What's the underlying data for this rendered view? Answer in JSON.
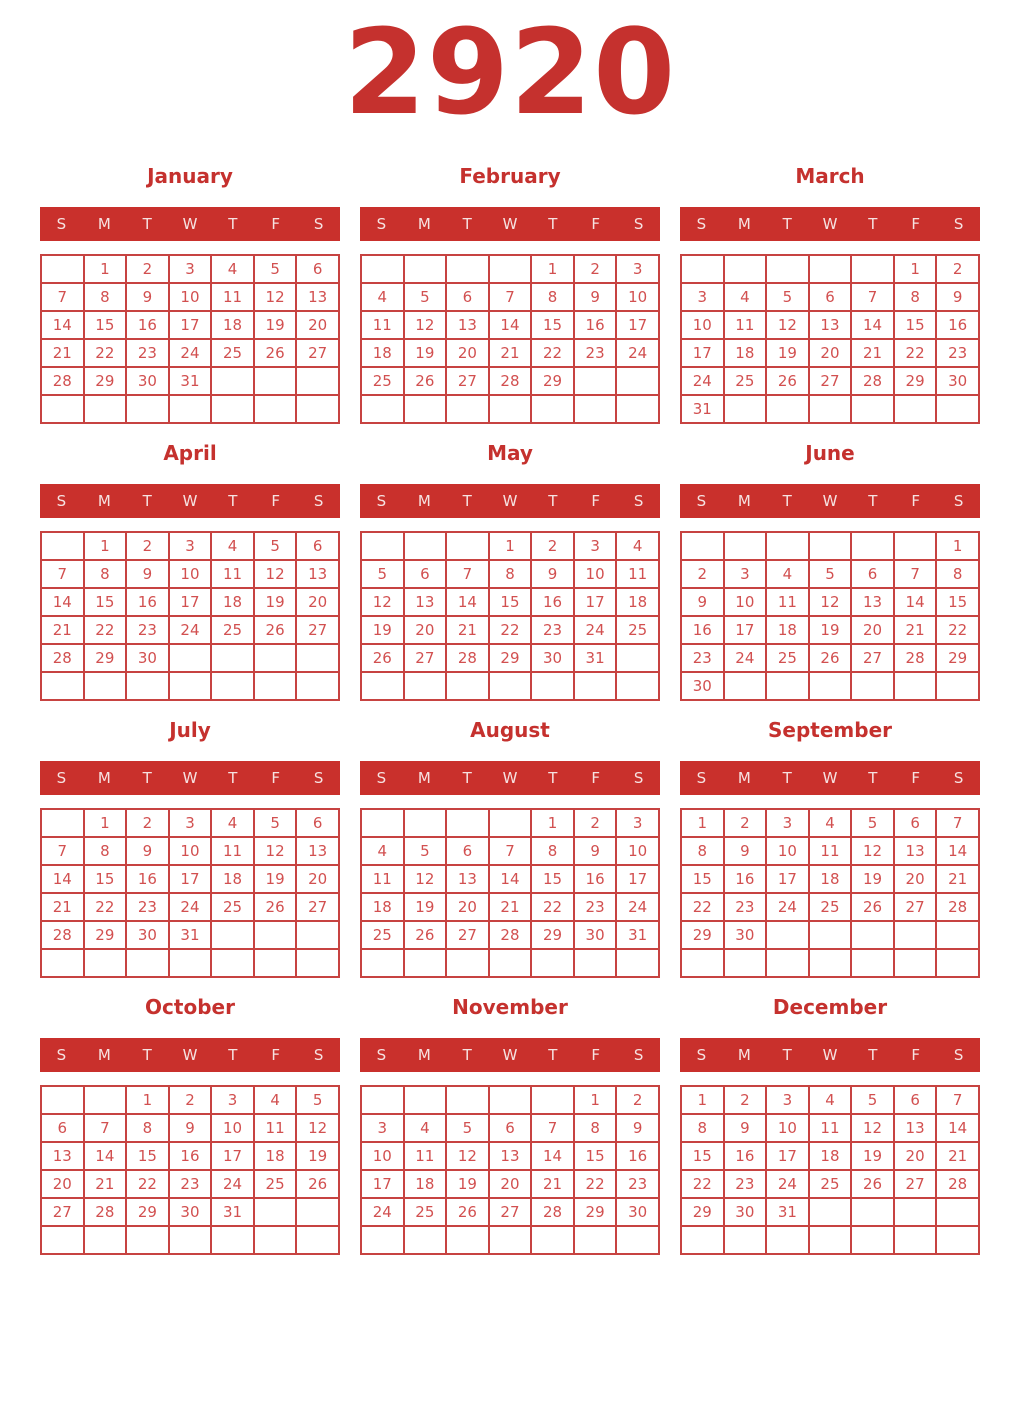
{
  "year": "2920",
  "weekday_headers": [
    "S",
    "M",
    "T",
    "W",
    "T",
    "F",
    "S"
  ],
  "colors": {
    "accent": "#c9302c",
    "title_text": "#c5312e",
    "day_number": "#d25050",
    "inner_border": "#c74341",
    "outer_border": "#eaabab",
    "weekday_text": "#f6e2e1"
  },
  "months": [
    {
      "name": "January",
      "weeks": [
        [
          "",
          "1",
          "2",
          "3",
          "4",
          "5",
          "6"
        ],
        [
          "7",
          "8",
          "9",
          "10",
          "11",
          "12",
          "13"
        ],
        [
          "14",
          "15",
          "16",
          "17",
          "18",
          "19",
          "20"
        ],
        [
          "21",
          "22",
          "23",
          "24",
          "25",
          "26",
          "27"
        ],
        [
          "28",
          "29",
          "30",
          "31",
          "",
          "",
          ""
        ],
        [
          "",
          "",
          "",
          "",
          "",
          "",
          ""
        ]
      ]
    },
    {
      "name": "February",
      "weeks": [
        [
          "",
          "",
          "",
          "",
          "1",
          "2",
          "3"
        ],
        [
          "4",
          "5",
          "6",
          "7",
          "8",
          "9",
          "10"
        ],
        [
          "11",
          "12",
          "13",
          "14",
          "15",
          "16",
          "17"
        ],
        [
          "18",
          "19",
          "20",
          "21",
          "22",
          "23",
          "24"
        ],
        [
          "25",
          "26",
          "27",
          "28",
          "29",
          "",
          ""
        ],
        [
          "",
          "",
          "",
          "",
          "",
          "",
          ""
        ]
      ]
    },
    {
      "name": "March",
      "weeks": [
        [
          "",
          "",
          "",
          "",
          "",
          "1",
          "2"
        ],
        [
          "3",
          "4",
          "5",
          "6",
          "7",
          "8",
          "9"
        ],
        [
          "10",
          "11",
          "12",
          "13",
          "14",
          "15",
          "16"
        ],
        [
          "17",
          "18",
          "19",
          "20",
          "21",
          "22",
          "23"
        ],
        [
          "24",
          "25",
          "26",
          "27",
          "28",
          "29",
          "30"
        ],
        [
          "31",
          "",
          "",
          "",
          "",
          "",
          ""
        ]
      ]
    },
    {
      "name": "April",
      "weeks": [
        [
          "",
          "1",
          "2",
          "3",
          "4",
          "5",
          "6"
        ],
        [
          "7",
          "8",
          "9",
          "10",
          "11",
          "12",
          "13"
        ],
        [
          "14",
          "15",
          "16",
          "17",
          "18",
          "19",
          "20"
        ],
        [
          "21",
          "22",
          "23",
          "24",
          "25",
          "26",
          "27"
        ],
        [
          "28",
          "29",
          "30",
          "",
          "",
          "",
          ""
        ],
        [
          "",
          "",
          "",
          "",
          "",
          "",
          ""
        ]
      ]
    },
    {
      "name": "May",
      "weeks": [
        [
          "",
          "",
          "",
          "1",
          "2",
          "3",
          "4"
        ],
        [
          "5",
          "6",
          "7",
          "8",
          "9",
          "10",
          "11"
        ],
        [
          "12",
          "13",
          "14",
          "15",
          "16",
          "17",
          "18"
        ],
        [
          "19",
          "20",
          "21",
          "22",
          "23",
          "24",
          "25"
        ],
        [
          "26",
          "27",
          "28",
          "29",
          "30",
          "31",
          ""
        ],
        [
          "",
          "",
          "",
          "",
          "",
          "",
          ""
        ]
      ]
    },
    {
      "name": "June",
      "weeks": [
        [
          "",
          "",
          "",
          "",
          "",
          "",
          "1"
        ],
        [
          "2",
          "3",
          "4",
          "5",
          "6",
          "7",
          "8"
        ],
        [
          "9",
          "10",
          "11",
          "12",
          "13",
          "14",
          "15"
        ],
        [
          "16",
          "17",
          "18",
          "19",
          "20",
          "21",
          "22"
        ],
        [
          "23",
          "24",
          "25",
          "26",
          "27",
          "28",
          "29"
        ],
        [
          "30",
          "",
          "",
          "",
          "",
          "",
          ""
        ]
      ]
    },
    {
      "name": "July",
      "weeks": [
        [
          "",
          "1",
          "2",
          "3",
          "4",
          "5",
          "6"
        ],
        [
          "7",
          "8",
          "9",
          "10",
          "11",
          "12",
          "13"
        ],
        [
          "14",
          "15",
          "16",
          "17",
          "18",
          "19",
          "20"
        ],
        [
          "21",
          "22",
          "23",
          "24",
          "25",
          "26",
          "27"
        ],
        [
          "28",
          "29",
          "30",
          "31",
          "",
          "",
          ""
        ],
        [
          "",
          "",
          "",
          "",
          "",
          "",
          ""
        ]
      ]
    },
    {
      "name": "August",
      "weeks": [
        [
          "",
          "",
          "",
          "",
          "1",
          "2",
          "3"
        ],
        [
          "4",
          "5",
          "6",
          "7",
          "8",
          "9",
          "10"
        ],
        [
          "11",
          "12",
          "13",
          "14",
          "15",
          "16",
          "17"
        ],
        [
          "18",
          "19",
          "20",
          "21",
          "22",
          "23",
          "24"
        ],
        [
          "25",
          "26",
          "27",
          "28",
          "29",
          "30",
          "31"
        ],
        [
          "",
          "",
          "",
          "",
          "",
          "",
          ""
        ]
      ]
    },
    {
      "name": "September",
      "weeks": [
        [
          "1",
          "2",
          "3",
          "4",
          "5",
          "6",
          "7"
        ],
        [
          "8",
          "9",
          "10",
          "11",
          "12",
          "13",
          "14"
        ],
        [
          "15",
          "16",
          "17",
          "18",
          "19",
          "20",
          "21"
        ],
        [
          "22",
          "23",
          "24",
          "25",
          "26",
          "27",
          "28"
        ],
        [
          "29",
          "30",
          "",
          "",
          "",
          "",
          ""
        ],
        [
          "",
          "",
          "",
          "",
          "",
          "",
          ""
        ]
      ]
    },
    {
      "name": "October",
      "weeks": [
        [
          "",
          "",
          "1",
          "2",
          "3",
          "4",
          "5"
        ],
        [
          "6",
          "7",
          "8",
          "9",
          "10",
          "11",
          "12"
        ],
        [
          "13",
          "14",
          "15",
          "16",
          "17",
          "18",
          "19"
        ],
        [
          "20",
          "21",
          "22",
          "23",
          "24",
          "25",
          "26"
        ],
        [
          "27",
          "28",
          "29",
          "30",
          "31",
          "",
          ""
        ],
        [
          "",
          "",
          "",
          "",
          "",
          "",
          ""
        ]
      ]
    },
    {
      "name": "November",
      "weeks": [
        [
          "",
          "",
          "",
          "",
          "",
          "1",
          "2"
        ],
        [
          "3",
          "4",
          "5",
          "6",
          "7",
          "8",
          "9"
        ],
        [
          "10",
          "11",
          "12",
          "13",
          "14",
          "15",
          "16"
        ],
        [
          "17",
          "18",
          "19",
          "20",
          "21",
          "22",
          "23"
        ],
        [
          "24",
          "25",
          "26",
          "27",
          "28",
          "29",
          "30"
        ],
        [
          "",
          "",
          "",
          "",
          "",
          "",
          ""
        ]
      ]
    },
    {
      "name": "December",
      "weeks": [
        [
          "1",
          "2",
          "3",
          "4",
          "5",
          "6",
          "7"
        ],
        [
          "8",
          "9",
          "10",
          "11",
          "12",
          "13",
          "14"
        ],
        [
          "15",
          "16",
          "17",
          "18",
          "19",
          "20",
          "21"
        ],
        [
          "22",
          "23",
          "24",
          "25",
          "26",
          "27",
          "28"
        ],
        [
          "29",
          "30",
          "31",
          "",
          "",
          "",
          ""
        ],
        [
          "",
          "",
          "",
          "",
          "",
          "",
          ""
        ]
      ]
    }
  ]
}
